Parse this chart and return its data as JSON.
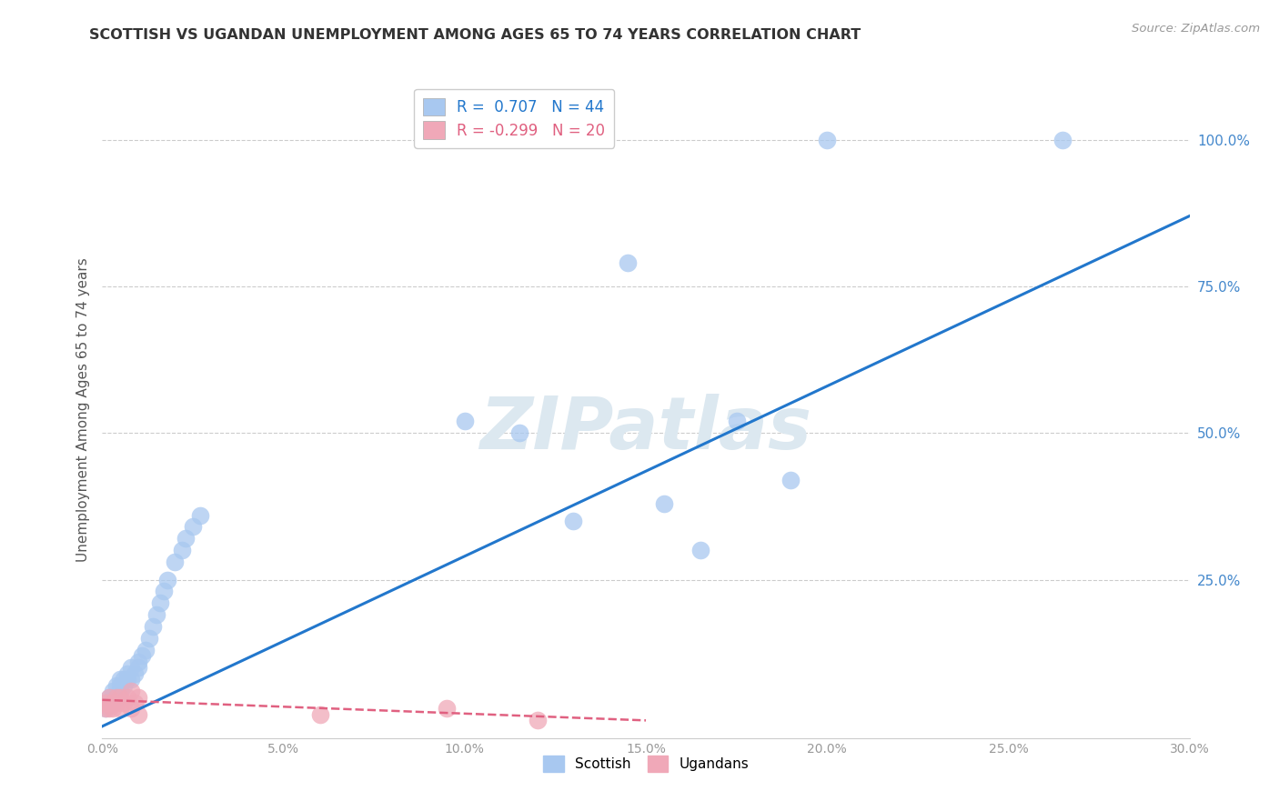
{
  "title": "SCOTTISH VS UGANDAN UNEMPLOYMENT AMONG AGES 65 TO 74 YEARS CORRELATION CHART",
  "source": "Source: ZipAtlas.com",
  "ylabel": "Unemployment Among Ages 65 to 74 years",
  "xlim": [
    0.0,
    0.3
  ],
  "ylim": [
    -0.02,
    1.1
  ],
  "xtick_labels": [
    "0.0%",
    "5.0%",
    "10.0%",
    "15.0%",
    "20.0%",
    "25.0%",
    "30.0%"
  ],
  "xtick_vals": [
    0.0,
    0.05,
    0.1,
    0.15,
    0.2,
    0.25,
    0.3
  ],
  "ytick_labels": [
    "25.0%",
    "50.0%",
    "75.0%",
    "100.0%"
  ],
  "ytick_vals": [
    0.25,
    0.5,
    0.75,
    1.0
  ],
  "legend_r_scottish": "R =  0.707",
  "legend_n_scottish": "N = 44",
  "legend_r_ugandan": "R = -0.299",
  "legend_n_ugandan": "N = 20",
  "scottish_color": "#a8c8f0",
  "ugandan_color": "#f0a8b8",
  "trendline_scottish_color": "#2277cc",
  "trendline_ugandan_color": "#e06080",
  "watermark_color": "#dce8f0",
  "background_color": "#ffffff",
  "scottish_x": [
    0.001,
    0.001,
    0.002,
    0.002,
    0.003,
    0.003,
    0.003,
    0.004,
    0.004,
    0.005,
    0.005,
    0.005,
    0.006,
    0.006,
    0.007,
    0.007,
    0.008,
    0.008,
    0.009,
    0.01,
    0.01,
    0.011,
    0.012,
    0.013,
    0.014,
    0.015,
    0.016,
    0.017,
    0.018,
    0.02,
    0.022,
    0.023,
    0.025,
    0.027,
    0.1,
    0.115,
    0.13,
    0.145,
    0.155,
    0.165,
    0.175,
    0.19,
    0.2,
    0.265
  ],
  "scottish_y": [
    0.03,
    0.04,
    0.04,
    0.05,
    0.04,
    0.05,
    0.06,
    0.05,
    0.07,
    0.06,
    0.07,
    0.08,
    0.07,
    0.08,
    0.08,
    0.09,
    0.08,
    0.1,
    0.09,
    0.1,
    0.11,
    0.12,
    0.13,
    0.15,
    0.17,
    0.19,
    0.21,
    0.23,
    0.25,
    0.28,
    0.3,
    0.32,
    0.34,
    0.36,
    0.52,
    0.5,
    0.35,
    0.79,
    0.38,
    0.3,
    0.52,
    0.42,
    1.0,
    1.0
  ],
  "ugandan_x": [
    0.001,
    0.001,
    0.002,
    0.002,
    0.003,
    0.003,
    0.004,
    0.004,
    0.005,
    0.005,
    0.006,
    0.007,
    0.008,
    0.008,
    0.009,
    0.01,
    0.01,
    0.06,
    0.095,
    0.12
  ],
  "ugandan_y": [
    0.03,
    0.04,
    0.03,
    0.05,
    0.03,
    0.04,
    0.04,
    0.05,
    0.03,
    0.05,
    0.04,
    0.05,
    0.03,
    0.06,
    0.04,
    0.02,
    0.05,
    0.02,
    0.03,
    0.01
  ],
  "trendline_scottish_x0": 0.0,
  "trendline_scottish_y0": 0.0,
  "trendline_scottish_x1": 0.3,
  "trendline_scottish_y1": 0.87,
  "trendline_ugandan_x0": 0.0,
  "trendline_ugandan_y0": 0.045,
  "trendline_ugandan_x1": 0.15,
  "trendline_ugandan_y1": 0.01
}
